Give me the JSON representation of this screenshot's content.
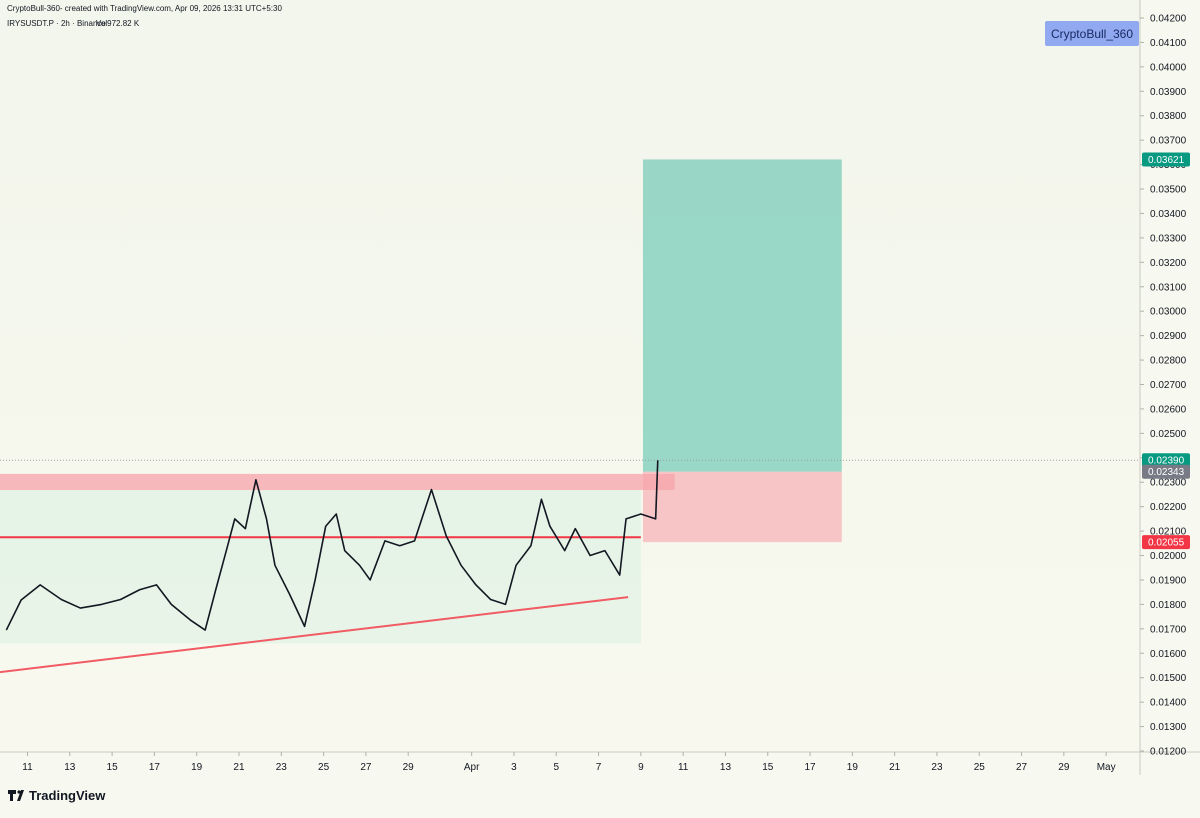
{
  "chart_data": {
    "type": "line",
    "header": "CryptoBull-360- created with TradingView.com, Apr 09, 2026 13:31 UTC+5:30",
    "symbol": "IRYSUSDT.P · 2h · Binance",
    "volume": "Vol972.82 K",
    "watermark": "CryptoBull_360",
    "brand": "TradingView",
    "xlim": [
      9.7,
      63.6
    ],
    "ylim": [
      0.012,
      0.042
    ],
    "xticks": [
      {
        "value": 11,
        "label": "11"
      },
      {
        "value": 13,
        "label": "13"
      },
      {
        "value": 15,
        "label": "15"
      },
      {
        "value": 17,
        "label": "17"
      },
      {
        "value": 19,
        "label": "19"
      },
      {
        "value": 21,
        "label": "21"
      },
      {
        "value": 23,
        "label": "23"
      },
      {
        "value": 25,
        "label": "25"
      },
      {
        "value": 27,
        "label": "27"
      },
      {
        "value": 29,
        "label": "29"
      },
      {
        "value": 32,
        "label": "Apr"
      },
      {
        "value": 34,
        "label": "3"
      },
      {
        "value": 36,
        "label": "5"
      },
      {
        "value": 38,
        "label": "7"
      },
      {
        "value": 40,
        "label": "9"
      },
      {
        "value": 42,
        "label": "11"
      },
      {
        "value": 44,
        "label": "13"
      },
      {
        "value": 46,
        "label": "15"
      },
      {
        "value": 48,
        "label": "17"
      },
      {
        "value": 50,
        "label": "19"
      },
      {
        "value": 52,
        "label": "21"
      },
      {
        "value": 54,
        "label": "23"
      },
      {
        "value": 56,
        "label": "25"
      },
      {
        "value": 58,
        "label": "27"
      },
      {
        "value": 60,
        "label": "29"
      },
      {
        "value": 62,
        "label": "May"
      }
    ],
    "yticks": [
      {
        "value": 0.042,
        "label": "0.04200"
      },
      {
        "value": 0.041,
        "label": "0.04100"
      },
      {
        "value": 0.04,
        "label": "0.04000"
      },
      {
        "value": 0.039,
        "label": "0.03900"
      },
      {
        "value": 0.038,
        "label": "0.03800"
      },
      {
        "value": 0.037,
        "label": "0.03700"
      },
      {
        "value": 0.036,
        "label": "0.03600"
      },
      {
        "value": 0.035,
        "label": "0.03500"
      },
      {
        "value": 0.034,
        "label": "0.03400"
      },
      {
        "value": 0.033,
        "label": "0.03300"
      },
      {
        "value": 0.032,
        "label": "0.03200"
      },
      {
        "value": 0.031,
        "label": "0.03100"
      },
      {
        "value": 0.03,
        "label": "0.03000"
      },
      {
        "value": 0.029,
        "label": "0.02900"
      },
      {
        "value": 0.028,
        "label": "0.02800"
      },
      {
        "value": 0.027,
        "label": "0.02700"
      },
      {
        "value": 0.026,
        "label": "0.02600"
      },
      {
        "value": 0.025,
        "label": "0.02500"
      },
      {
        "value": 0.024,
        "label": "0.02400"
      },
      {
        "value": 0.023,
        "label": "0.02300"
      },
      {
        "value": 0.022,
        "label": "0.02200"
      },
      {
        "value": 0.021,
        "label": "0.02100"
      },
      {
        "value": 0.02,
        "label": "0.02000"
      },
      {
        "value": 0.019,
        "label": "0.01900"
      },
      {
        "value": 0.018,
        "label": "0.01800"
      },
      {
        "value": 0.017,
        "label": "0.01700"
      },
      {
        "value": 0.016,
        "label": "0.01600"
      },
      {
        "value": 0.015,
        "label": "0.01500"
      },
      {
        "value": 0.014,
        "label": "0.01400"
      },
      {
        "value": 0.013,
        "label": "0.01300"
      },
      {
        "value": 0.012,
        "label": "0.01200"
      }
    ],
    "series": [
      {
        "name": "IRYSUSDT.P",
        "color": "#131722",
        "x": [
          10.0,
          10.7,
          11.6,
          12.6,
          13.5,
          14.5,
          15.4,
          16.3,
          17.1,
          17.8,
          18.7,
          19.4,
          19.9,
          20.4,
          20.8,
          21.3,
          21.8,
          22.3,
          22.7,
          23.4,
          24.1,
          24.6,
          25.1,
          25.6,
          26.0,
          26.7,
          27.2,
          27.9,
          28.6,
          29.3,
          30.1,
          30.8,
          31.5,
          32.2,
          32.9,
          33.6,
          34.1,
          34.8,
          35.3,
          35.7,
          36.4,
          36.9,
          37.6,
          38.3,
          39.0,
          39.3,
          40.0,
          40.7,
          40.8
        ],
        "values": [
          0.01695,
          0.01818,
          0.0188,
          0.0182,
          0.01785,
          0.018,
          0.0182,
          0.0186,
          0.0188,
          0.018,
          0.01736,
          0.01695,
          0.0186,
          0.0202,
          0.0215,
          0.0211,
          0.0231,
          0.0215,
          0.0196,
          0.0184,
          0.0171,
          0.019,
          0.0212,
          0.0217,
          0.0202,
          0.0196,
          0.019,
          0.0206,
          0.0204,
          0.0206,
          0.0227,
          0.0208,
          0.0196,
          0.0188,
          0.0182,
          0.018,
          0.0196,
          0.0204,
          0.0223,
          0.0212,
          0.0202,
          0.0211,
          0.02,
          0.0202,
          0.0192,
          0.0215,
          0.0217,
          0.0215,
          0.0239
        ]
      }
    ],
    "price_labels": [
      {
        "value": 0.03621,
        "label": "0.03621",
        "color": "#089981"
      },
      {
        "value": 0.0239,
        "label": "0.02390",
        "color": "#089981"
      },
      {
        "value": 0.02343,
        "label": "0.02343",
        "color": "#787b86"
      },
      {
        "value": 0.02055,
        "label": "0.02055",
        "color": "#f23645"
      }
    ],
    "target_zone": {
      "x": [
        40.1,
        49.5
      ],
      "y": [
        0.02343,
        0.03621
      ],
      "color": "#8fd3c1"
    },
    "stop_zone": {
      "x": [
        40.1,
        49.5
      ],
      "y": [
        0.02055,
        0.02343
      ],
      "color": "#f7b8bb"
    },
    "resistance_zone": {
      "x": [
        9.7,
        41.6
      ],
      "y": [
        0.02268,
        0.02334
      ],
      "color": "#f5a3a9"
    },
    "range_box": {
      "x": [
        9.7,
        40.0
      ],
      "y": [
        0.0164,
        0.02268
      ],
      "color": "#dff2e4"
    },
    "support_level": {
      "x": [
        9.7,
        40.0
      ],
      "y": 0.02075,
      "color": "#f23645"
    },
    "trend_line": {
      "x": [
        9.7,
        39.4
      ],
      "y": [
        0.01523,
        0.0183
      ],
      "color": "#f05b64"
    },
    "last_price": 0.0239
  }
}
